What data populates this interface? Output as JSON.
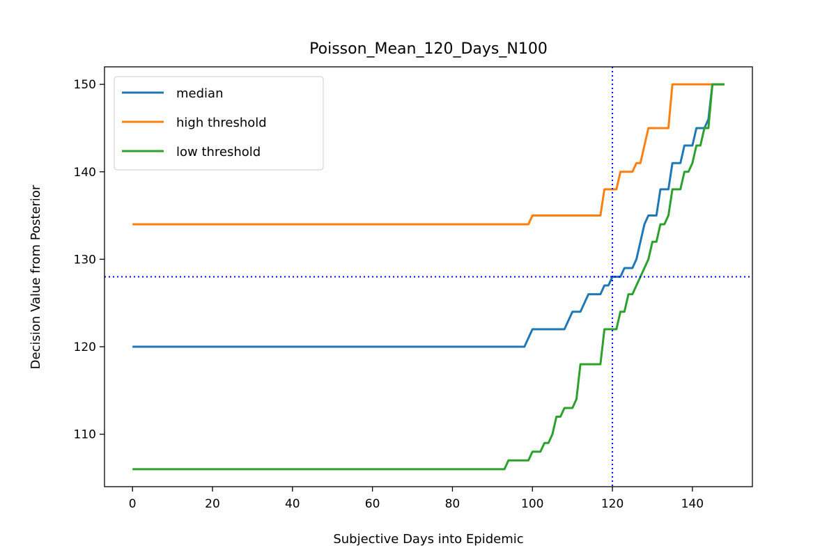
{
  "chart_data": {
    "type": "line",
    "title": "Poisson_Mean_120_Days_N100",
    "xlabel": "Subjective Days into Epidemic",
    "ylabel": "Decision Value from Posterior",
    "xlim": [
      -7,
      155
    ],
    "ylim": [
      104,
      152
    ],
    "xticks": [
      0,
      20,
      40,
      60,
      80,
      100,
      120,
      140
    ],
    "yticks": [
      110,
      120,
      130,
      140,
      150
    ],
    "grid": false,
    "legend_position": "upper-left",
    "reference_lines": {
      "vertical_x": 120,
      "horizontal_y": 128,
      "color": "#0000ff",
      "style": "dotted"
    },
    "series": [
      {
        "name": "median",
        "color": "#1f77b4",
        "points": [
          [
            0,
            120
          ],
          [
            98,
            120
          ],
          [
            100,
            122
          ],
          [
            108,
            122
          ],
          [
            110,
            124
          ],
          [
            112,
            124
          ],
          [
            114,
            126
          ],
          [
            117,
            126
          ],
          [
            118,
            127
          ],
          [
            119,
            127
          ],
          [
            120,
            128
          ],
          [
            122,
            128
          ],
          [
            123,
            129
          ],
          [
            125,
            129
          ],
          [
            126,
            130
          ],
          [
            128,
            134
          ],
          [
            129,
            135
          ],
          [
            131,
            135
          ],
          [
            132,
            138
          ],
          [
            134,
            138
          ],
          [
            135,
            141
          ],
          [
            137,
            141
          ],
          [
            138,
            143
          ],
          [
            139,
            143
          ],
          [
            140,
            143
          ],
          [
            141,
            145
          ],
          [
            143,
            145
          ],
          [
            144,
            146
          ],
          [
            145,
            150
          ],
          [
            148,
            150
          ]
        ]
      },
      {
        "name": "high threshold",
        "color": "#ff7f0e",
        "points": [
          [
            0,
            134
          ],
          [
            99,
            134
          ],
          [
            100,
            135
          ],
          [
            117,
            135
          ],
          [
            118,
            138
          ],
          [
            120,
            138
          ],
          [
            121,
            138
          ],
          [
            122,
            140
          ],
          [
            125,
            140
          ],
          [
            126,
            141
          ],
          [
            127,
            141
          ],
          [
            129,
            145
          ],
          [
            134,
            145
          ],
          [
            135,
            150
          ],
          [
            148,
            150
          ]
        ]
      },
      {
        "name": "low threshold",
        "color": "#2ca02c",
        "points": [
          [
            0,
            106
          ],
          [
            93,
            106
          ],
          [
            94,
            107
          ],
          [
            99,
            107
          ],
          [
            100,
            108
          ],
          [
            102,
            108
          ],
          [
            103,
            109
          ],
          [
            104,
            109
          ],
          [
            105,
            110
          ],
          [
            106,
            112
          ],
          [
            107,
            112
          ],
          [
            108,
            113
          ],
          [
            110,
            113
          ],
          [
            111,
            114
          ],
          [
            112,
            118
          ],
          [
            117,
            118
          ],
          [
            118,
            122
          ],
          [
            120,
            122
          ],
          [
            121,
            122
          ],
          [
            122,
            124
          ],
          [
            123,
            124
          ],
          [
            124,
            126
          ],
          [
            125,
            126
          ],
          [
            126,
            127
          ],
          [
            127,
            128
          ],
          [
            128,
            129
          ],
          [
            129,
            130
          ],
          [
            130,
            132
          ],
          [
            131,
            132
          ],
          [
            132,
            134
          ],
          [
            133,
            134
          ],
          [
            134,
            135
          ],
          [
            135,
            138
          ],
          [
            137,
            138
          ],
          [
            138,
            140
          ],
          [
            139,
            140
          ],
          [
            140,
            141
          ],
          [
            141,
            143
          ],
          [
            142,
            143
          ],
          [
            143,
            145
          ],
          [
            144,
            145
          ],
          [
            145,
            150
          ],
          [
            148,
            150
          ]
        ]
      }
    ]
  }
}
